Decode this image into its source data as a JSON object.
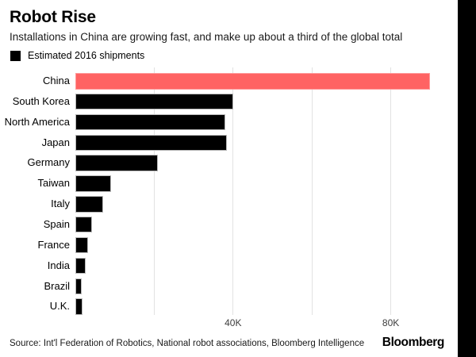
{
  "page": {
    "background": "#ffffff",
    "right_strip_color": "#000000"
  },
  "header": {
    "title": "Robot Rise",
    "subtitle": "Installations in China are growing fast, and make up about a third of the global total"
  },
  "legend": {
    "swatch_color": "#000000",
    "label": "Estimated 2016 shipments"
  },
  "chart_data": {
    "type": "bar",
    "orientation": "horizontal",
    "title": "Robot Rise",
    "subtitle": "Installations in China are growing fast, and make up about a third of the global total",
    "legend_entries": [
      "Estimated 2016 shipments"
    ],
    "categories": [
      "China",
      "South Korea",
      "North America",
      "Japan",
      "Germany",
      "Taiwan",
      "Italy",
      "Spain",
      "France",
      "India",
      "Brazil",
      "U.K."
    ],
    "values_thousands": [
      90,
      40,
      38,
      38.5,
      21,
      9,
      7,
      4.2,
      3.2,
      2.6,
      1.6,
      1.8
    ],
    "unit": "thousand shipments",
    "xlim": [
      0,
      97
    ],
    "x_ticks": [
      {
        "value": 20,
        "label": ""
      },
      {
        "value": 40,
        "label": "40K"
      },
      {
        "value": 60,
        "label": ""
      },
      {
        "value": 80,
        "label": "80K"
      }
    ],
    "grid": true,
    "highlight_category": "China",
    "colors": {
      "highlight_fill": "#ff6363",
      "highlight_border": "#ff9c9c",
      "default_fill": "#000000",
      "default_border": "#b8b8b8",
      "gridline": "#e2e2e2"
    }
  },
  "footer": {
    "source": "Source: Int'l Federation of Robotics, National robot associations, Bloomberg Intelligence",
    "brand": "Bloomberg"
  }
}
